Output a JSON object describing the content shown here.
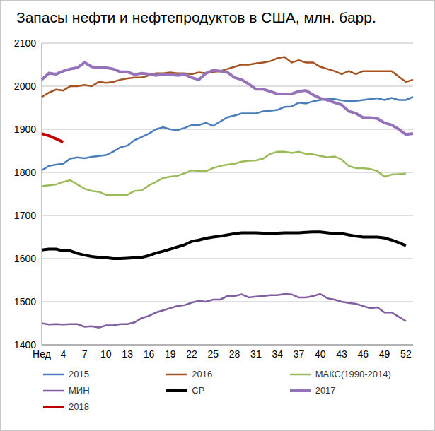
{
  "chart_data": {
    "type": "line",
    "title": "Запасы нефти и нефтепродуктов в США, млн. барр.",
    "categories": [
      "Нед",
      null,
      null,
      "4",
      null,
      null,
      "7",
      null,
      null,
      "10",
      null,
      null,
      "13",
      null,
      null,
      "16",
      null,
      null,
      "19",
      null,
      null,
      "22",
      null,
      null,
      "25",
      null,
      null,
      "28",
      null,
      null,
      "31",
      null,
      null,
      "34",
      null,
      null,
      "37",
      null,
      null,
      "40",
      null,
      null,
      "43",
      null,
      null,
      "46",
      null,
      null,
      "49",
      null,
      null,
      "52",
      null
    ],
    "ylim": [
      1400,
      2100
    ],
    "yticks": [
      1400,
      1500,
      1600,
      1700,
      1800,
      1900,
      2000,
      2100
    ],
    "grid": true,
    "legend": "bottom",
    "series": [
      {
        "name": "2015",
        "color": "#4a7ebb",
        "line_style": "solid",
        "values": [
          1805,
          1815,
          1818,
          1820,
          1832,
          1835,
          1833,
          1836,
          1838,
          1840,
          1848,
          1858,
          1862,
          1875,
          1882,
          1890,
          1900,
          1905,
          1900,
          1898,
          1903,
          1910,
          1910,
          1915,
          1908,
          1918,
          1928,
          1932,
          1937,
          1937,
          1937,
          1942,
          1943,
          1945,
          1952,
          1953,
          1962,
          1960,
          1965,
          1968,
          1970,
          1970,
          1967,
          1965,
          1966,
          1968,
          1970,
          1972,
          1968,
          1973,
          1968,
          1968,
          1975
        ]
      },
      {
        "name": "2016",
        "color": "#a5521f",
        "line_style": "solid",
        "values": [
          1975,
          1985,
          1992,
          1990,
          2000,
          2000,
          2003,
          2000,
          2010,
          2008,
          2010,
          2015,
          2018,
          2020,
          2020,
          2025,
          2030,
          2030,
          2032,
          2030,
          2030,
          2028,
          2032,
          2030,
          2033,
          2035,
          2040,
          2045,
          2050,
          2050,
          2053,
          2055,
          2058,
          2065,
          2068,
          2055,
          2060,
          2055,
          2055,
          2045,
          2040,
          2035,
          2028,
          2035,
          2028,
          2035,
          2035,
          2035,
          2035,
          2035,
          2022,
          2010,
          2015
        ]
      },
      {
        "name": "МАКС(1990-2014)",
        "color": "#9bbb59",
        "line_style": "solid",
        "values": [
          1768,
          1770,
          1772,
          1778,
          1782,
          1772,
          1762,
          1757,
          1755,
          1748,
          1748,
          1748,
          1748,
          1757,
          1758,
          1770,
          1778,
          1787,
          1790,
          1792,
          1798,
          1805,
          1803,
          1803,
          1810,
          1815,
          1818,
          1820,
          1825,
          1827,
          1828,
          1832,
          1843,
          1848,
          1848,
          1845,
          1848,
          1843,
          1842,
          1838,
          1835,
          1837,
          1830,
          1815,
          1810,
          1810,
          1808,
          1803,
          1790,
          1795,
          1796,
          1797,
          null
        ]
      },
      {
        "name": "МИН",
        "color": "#7f5fa0",
        "line_style": "solid",
        "values": [
          1450,
          1447,
          1448,
          1447,
          1448,
          1448,
          1442,
          1443,
          1440,
          1445,
          1445,
          1448,
          1448,
          1452,
          1462,
          1467,
          1475,
          1480,
          1485,
          1490,
          1492,
          1498,
          1502,
          1500,
          1505,
          1505,
          1513,
          1513,
          1517,
          1510,
          1512,
          1513,
          1515,
          1515,
          1518,
          1517,
          1510,
          1510,
          1513,
          1518,
          1508,
          1505,
          1500,
          1497,
          1495,
          1490,
          1485,
          1487,
          1475,
          1475,
          1465,
          1455,
          null
        ]
      },
      {
        "name": "СР",
        "color": "#000000",
        "line_style": "bold",
        "values": [
          1620,
          1622,
          1622,
          1618,
          1618,
          1612,
          1608,
          1605,
          1603,
          1602,
          1600,
          1600,
          1601,
          1602,
          1603,
          1607,
          1613,
          1617,
          1622,
          1627,
          1632,
          1640,
          1643,
          1647,
          1650,
          1652,
          1655,
          1658,
          1660,
          1660,
          1660,
          1659,
          1658,
          1659,
          1660,
          1660,
          1660,
          1661,
          1662,
          1662,
          1660,
          1658,
          1658,
          1655,
          1652,
          1650,
          1650,
          1650,
          1648,
          1643,
          1637,
          1630,
          null
        ]
      },
      {
        "name": "2017",
        "color": "#9673b9",
        "line_style": "bold",
        "values": [
          2015,
          2030,
          2028,
          2035,
          2040,
          2043,
          2055,
          2045,
          2043,
          2043,
          2040,
          2033,
          2033,
          2027,
          2030,
          2028,
          2025,
          2028,
          2027,
          2025,
          2027,
          2020,
          2015,
          2030,
          2037,
          2035,
          2032,
          2020,
          2015,
          2005,
          1993,
          1993,
          1988,
          1982,
          1982,
          1982,
          1988,
          1990,
          1980,
          1972,
          1968,
          1962,
          1957,
          1942,
          1937,
          1927,
          1927,
          1925,
          1915,
          1910,
          1900,
          1888,
          1890
        ]
      },
      {
        "name": "2018",
        "color": "#c00000",
        "line_style": "bold",
        "values": [
          1890,
          1885,
          1878,
          1870,
          null,
          null,
          null,
          null,
          null,
          null,
          null,
          null,
          null,
          null,
          null,
          null,
          null,
          null,
          null,
          null,
          null,
          null,
          null,
          null,
          null,
          null,
          null,
          null,
          null,
          null,
          null,
          null,
          null,
          null,
          null,
          null,
          null,
          null,
          null,
          null,
          null,
          null,
          null,
          null,
          null,
          null,
          null,
          null,
          null,
          null,
          null,
          null,
          null
        ]
      }
    ]
  }
}
